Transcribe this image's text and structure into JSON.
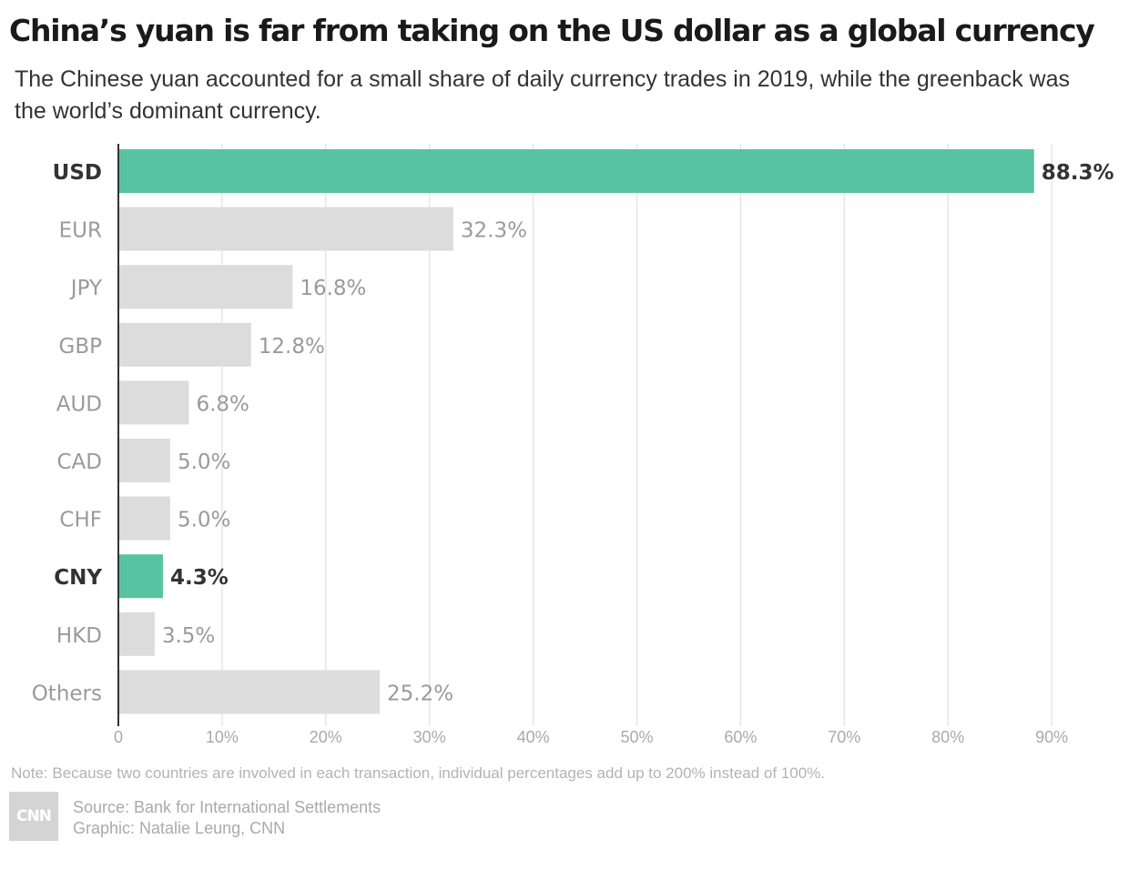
{
  "header": {
    "title": "China’s yuan is far from taking on the US dollar as a global currency",
    "subtitle": "The Chinese yuan accounted for a small share of daily currency trades in 2019, while the greenback was the world’s dominant currency."
  },
  "chart_data": {
    "type": "bar",
    "orientation": "horizontal",
    "categories": [
      "USD",
      "EUR",
      "JPY",
      "GBP",
      "AUD",
      "CAD",
      "CHF",
      "CNY",
      "HKD",
      "Others"
    ],
    "values": [
      88.3,
      32.3,
      16.8,
      12.8,
      6.8,
      5.0,
      5.0,
      4.3,
      3.5,
      25.2
    ],
    "value_labels": [
      "88.3%",
      "32.3%",
      "16.8%",
      "12.8%",
      "6.8%",
      "5.0%",
      "5.0%",
      "4.3%",
      "3.5%",
      "25.2%"
    ],
    "highlighted": [
      "USD",
      "CNY"
    ],
    "xlim": [
      0,
      90
    ],
    "x_ticks": [
      0,
      10,
      20,
      30,
      40,
      50,
      60,
      70,
      80,
      90
    ],
    "x_tick_labels": [
      "0",
      "10%",
      "20%",
      "30%",
      "40%",
      "50%",
      "60%",
      "70%",
      "80%",
      "90%"
    ],
    "grid": "vertical",
    "colors": {
      "highlight": "#58c3a0",
      "default": "#dcdcdc",
      "highlight_text": "#333333",
      "default_text": "#9a9a9a"
    }
  },
  "footer": {
    "note": "Note: Because two countries are involved in each transaction, individual percentages add up to 200% instead of 100%.",
    "source": "Source: Bank for International Settlements",
    "graphic": "Graphic: Natalie Leung, CNN",
    "logo_text": "CNN"
  }
}
